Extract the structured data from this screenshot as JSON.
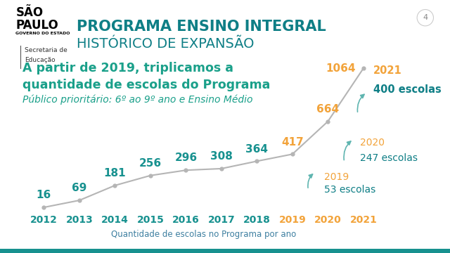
{
  "header": {
    "logo": [
      "SÃO",
      "PAULO"
    ],
    "logo_caption": "GOVERNO DO ESTADO",
    "department": [
      "Secretaria de",
      "Educação"
    ],
    "title": "PROGRAMA ENSINO INTEGRAL",
    "subtitle": "HISTÓRICO DE EXPANSÃO",
    "page": 4
  },
  "chart_data": {
    "type": "line",
    "headline": [
      "A partir de 2019, triplicamos a",
      "quantidade de escolas do Programa"
    ],
    "note": "Público prioritário: 6º ao 9º ano e Ensino Médio",
    "xlabel": "Quantidade de escolas no Programa por ano",
    "categories": [
      "2012",
      "2013",
      "2014",
      "2015",
      "2016",
      "2017",
      "2018",
      "2019",
      "2020",
      "2021"
    ],
    "values": [
      16,
      69,
      181,
      256,
      296,
      308,
      364,
      417,
      664,
      1064
    ],
    "colors": [
      "#17918f",
      "#17918f",
      "#17918f",
      "#17918f",
      "#17918f",
      "#17918f",
      "#17918f",
      "#f2a33a",
      "#f2a33a",
      "#f2a33a"
    ],
    "color": "#b5b5b5",
    "marker": "o",
    "line_style": "solid",
    "data_labels": true,
    "tick_labels": "x",
    "grid": false,
    "ylim": [
      0,
      1150
    ],
    "annotations": [
      {
        "label": "2019",
        "text": "53 escolas"
      },
      {
        "label": "2020",
        "text": "247 escolas"
      },
      {
        "label": "2021",
        "text": "400 escolas"
      }
    ]
  }
}
